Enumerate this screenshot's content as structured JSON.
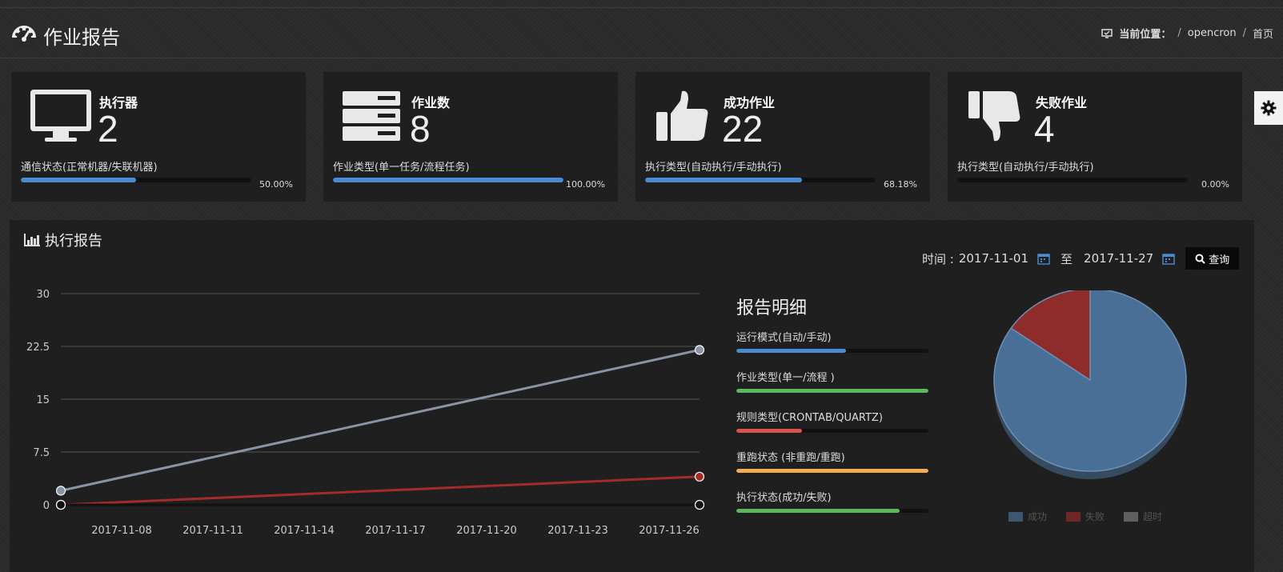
{
  "header": {
    "title": "作业报告",
    "breadcrumb": {
      "current_label": "当前位置：",
      "items": [
        "opencron",
        "首页"
      ]
    }
  },
  "cards": [
    {
      "title": "执行器",
      "value": "2",
      "subtitle": "通信状态(正常机器/失联机器)",
      "percent_text": "50.00%",
      "percent": 0.5,
      "icon": "monitor-icon"
    },
    {
      "title": "作业数",
      "value": "8",
      "subtitle": "作业类型(单一任务/流程任务)",
      "percent_text": "100.00%",
      "percent": 1.0,
      "icon": "server-icon"
    },
    {
      "title": "成功作业",
      "value": "22",
      "subtitle": "执行类型(自动执行/手动执行)",
      "percent_text": "68.18%",
      "percent": 0.6818,
      "icon": "thumbs-up-icon"
    },
    {
      "title": "失败作业",
      "value": "4",
      "subtitle": "执行类型(自动执行/手动执行)",
      "percent_text": "0.00%",
      "percent": 0.0,
      "icon": "thumbs-down-icon"
    }
  ],
  "report": {
    "title": "执行报告",
    "filter": {
      "label": "时间 :",
      "start": "2017-11-01",
      "to_label": "至",
      "end": "2017-11-27",
      "query_label": "查询"
    }
  },
  "chart_data": {
    "type": "line",
    "x": [
      "2017-11-08",
      "2017-11-11",
      "2017-11-14",
      "2017-11-17",
      "2017-11-20",
      "2017-11-23",
      "2017-11-26"
    ],
    "ylim": [
      0,
      30
    ],
    "y_ticks": [
      "0",
      "7.5",
      "15",
      "22.5",
      "30"
    ],
    "series": [
      {
        "values_at": [
          [
            "2017-11-06",
            2
          ],
          [
            "2017-11-27",
            22
          ]
        ],
        "color": "#8a94a6"
      },
      {
        "values_at": [
          [
            "2017-11-06",
            0
          ],
          [
            "2017-11-27",
            4
          ]
        ],
        "color": "#a52a2a"
      },
      {
        "values_at": [
          [
            "2017-11-06",
            0
          ],
          [
            "2017-11-27",
            0
          ]
        ],
        "color": "#111111"
      }
    ],
    "grid": true
  },
  "details": {
    "title": "报告明细",
    "rows": [
      {
        "label": "运行模式(自动/手动)",
        "fraction": 0.57,
        "color": "#4b8bd1"
      },
      {
        "label": "作业类型(单一/流程 )",
        "fraction": 1.0,
        "color": "#5cb85c"
      },
      {
        "label": "规则类型(CRONTAB/QUARTZ)",
        "fraction": 0.34,
        "color": "#d9534f"
      },
      {
        "label": "重跑状态 (非重跑/重跑)",
        "fraction": 1.0,
        "color": "#f0ad4e"
      },
      {
        "label": "执行状态(成功/失败)",
        "fraction": 0.85,
        "color": "#5cb85c"
      }
    ]
  },
  "pie": {
    "slices": [
      {
        "name": "成功",
        "value": 22,
        "color": "#4a6f96"
      },
      {
        "name": "失败",
        "value": 4,
        "color": "#8e2b2b"
      },
      {
        "name": "超时",
        "value": 0,
        "color": "#7a7a7a"
      }
    ]
  }
}
